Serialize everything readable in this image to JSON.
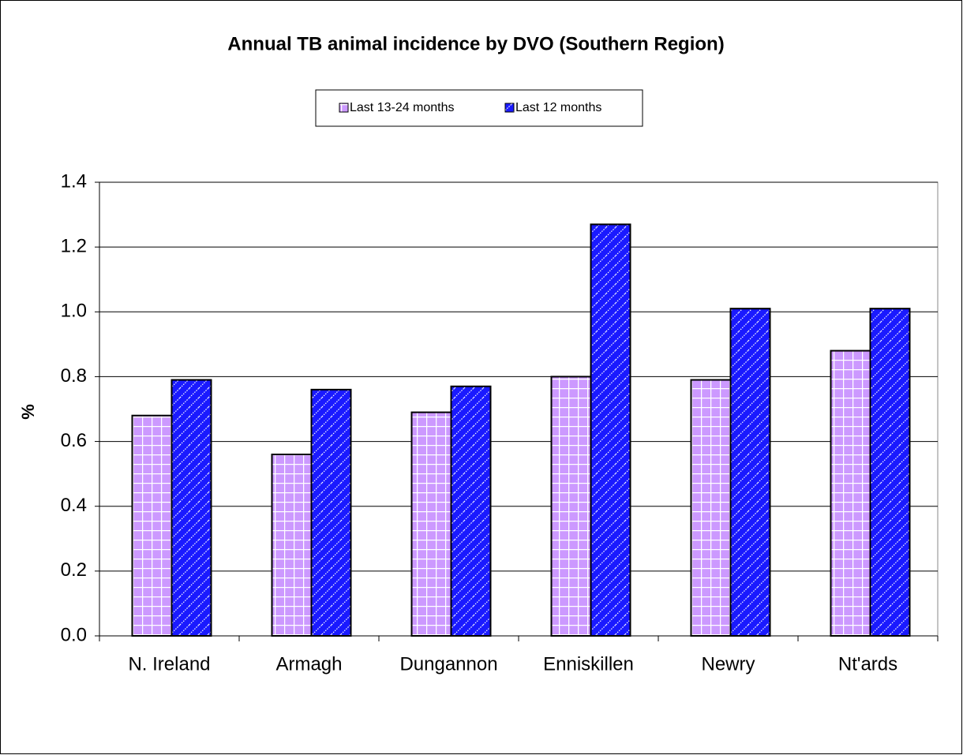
{
  "chart_data": {
    "type": "bar",
    "title": "Annual TB animal incidence by DVO (Southern Region)",
    "y_label": "%",
    "categories": [
      "N. Ireland",
      "Armagh",
      "Dungannon",
      "Enniskillen",
      "Newry",
      "Nt'ards"
    ],
    "series": [
      {
        "name": "Last 13-24 months",
        "color": "#cc99ff",
        "pattern": "grid",
        "values": [
          0.68,
          0.56,
          0.69,
          0.8,
          0.79,
          0.88
        ]
      },
      {
        "name": "Last 12 months",
        "color": "#1a1aff",
        "pattern": "dots",
        "values": [
          0.79,
          0.76,
          0.77,
          1.27,
          1.01,
          1.01
        ]
      }
    ],
    "ylim": [
      0,
      1.4
    ],
    "yticks": [
      {
        "value": 0,
        "label": "0.0"
      },
      0.2,
      0.4,
      0.6,
      0.8,
      {
        "value": 1,
        "label": "1.0"
      },
      1.2,
      1.4
    ],
    "grid": true,
    "legend": "top"
  }
}
